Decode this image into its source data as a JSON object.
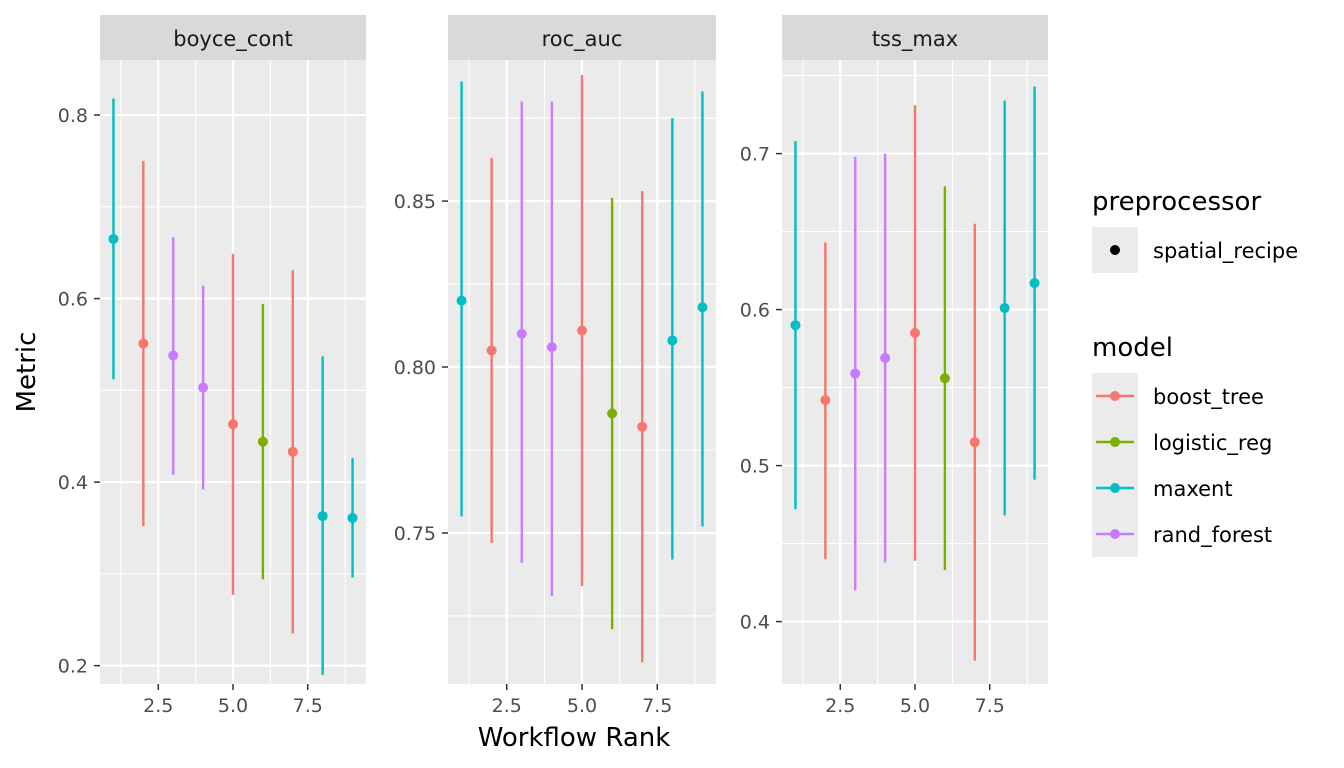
{
  "chart_data": {
    "type": "scatter",
    "xlabel": "Workflow Rank",
    "ylabel": "Metric",
    "x_ticks": [
      2.5,
      5.0,
      7.5
    ],
    "x_tick_labels": [
      "2.5",
      "5.0",
      "7.5"
    ],
    "xlim": [
      0.55,
      9.45
    ],
    "grid": true,
    "facets": [
      {
        "label": "boyce_cont",
        "ylim": [
          0.18,
          0.86
        ],
        "y_ticks": [
          0.2,
          0.4,
          0.6,
          0.8
        ],
        "y_tick_labels": [
          "0.2",
          "0.4",
          "0.6",
          "0.8"
        ],
        "points": [
          {
            "rank": 1,
            "model": "maxent",
            "mean": 0.665,
            "lower": 0.512,
            "upper": 0.818
          },
          {
            "rank": 2,
            "model": "boost_tree",
            "mean": 0.551,
            "lower": 0.352,
            "upper": 0.75
          },
          {
            "rank": 3,
            "model": "rand_forest",
            "mean": 0.538,
            "lower": 0.408,
            "upper": 0.667
          },
          {
            "rank": 4,
            "model": "rand_forest",
            "mean": 0.503,
            "lower": 0.392,
            "upper": 0.614
          },
          {
            "rank": 5,
            "model": "boost_tree",
            "mean": 0.463,
            "lower": 0.277,
            "upper": 0.649
          },
          {
            "rank": 6,
            "model": "logistic_reg",
            "mean": 0.444,
            "lower": 0.294,
            "upper": 0.594
          },
          {
            "rank": 7,
            "model": "boost_tree",
            "mean": 0.433,
            "lower": 0.235,
            "upper": 0.631
          },
          {
            "rank": 8,
            "model": "maxent",
            "mean": 0.363,
            "lower": 0.19,
            "upper": 0.537
          },
          {
            "rank": 9,
            "model": "maxent",
            "mean": 0.361,
            "lower": 0.296,
            "upper": 0.426
          }
        ]
      },
      {
        "label": "roc_auc",
        "ylim": [
          0.7045,
          0.8925
        ],
        "y_ticks": [
          0.75,
          0.8,
          0.85
        ],
        "y_tick_labels": [
          "0.75",
          "0.80",
          "0.85"
        ],
        "points": [
          {
            "rank": 1,
            "model": "maxent",
            "mean": 0.82,
            "lower": 0.755,
            "upper": 0.886
          },
          {
            "rank": 2,
            "model": "boost_tree",
            "mean": 0.805,
            "lower": 0.747,
            "upper": 0.863
          },
          {
            "rank": 3,
            "model": "rand_forest",
            "mean": 0.81,
            "lower": 0.741,
            "upper": 0.88
          },
          {
            "rank": 4,
            "model": "rand_forest",
            "mean": 0.806,
            "lower": 0.731,
            "upper": 0.88
          },
          {
            "rank": 5,
            "model": "boost_tree",
            "mean": 0.811,
            "lower": 0.734,
            "upper": 0.888
          },
          {
            "rank": 6,
            "model": "logistic_reg",
            "mean": 0.786,
            "lower": 0.721,
            "upper": 0.851
          },
          {
            "rank": 7,
            "model": "boost_tree",
            "mean": 0.782,
            "lower": 0.711,
            "upper": 0.853
          },
          {
            "rank": 8,
            "model": "maxent",
            "mean": 0.808,
            "lower": 0.742,
            "upper": 0.875
          },
          {
            "rank": 9,
            "model": "maxent",
            "mean": 0.818,
            "lower": 0.752,
            "upper": 0.883
          }
        ]
      },
      {
        "label": "tss_max",
        "ylim": [
          0.36,
          0.76
        ],
        "y_ticks": [
          0.4,
          0.5,
          0.6,
          0.7
        ],
        "y_tick_labels": [
          "0.4",
          "0.5",
          "0.6",
          "0.7"
        ],
        "points": [
          {
            "rank": 1,
            "model": "maxent",
            "mean": 0.59,
            "lower": 0.472,
            "upper": 0.708
          },
          {
            "rank": 2,
            "model": "boost_tree",
            "mean": 0.542,
            "lower": 0.44,
            "upper": 0.643
          },
          {
            "rank": 3,
            "model": "rand_forest",
            "mean": 0.559,
            "lower": 0.42,
            "upper": 0.698
          },
          {
            "rank": 4,
            "model": "rand_forest",
            "mean": 0.569,
            "lower": 0.438,
            "upper": 0.7
          },
          {
            "rank": 5,
            "model": "boost_tree",
            "mean": 0.585,
            "lower": 0.439,
            "upper": 0.731
          },
          {
            "rank": 6,
            "model": "logistic_reg",
            "mean": 0.556,
            "lower": 0.433,
            "upper": 0.679
          },
          {
            "rank": 7,
            "model": "boost_tree",
            "mean": 0.515,
            "lower": 0.375,
            "upper": 0.655
          },
          {
            "rank": 8,
            "model": "maxent",
            "mean": 0.601,
            "lower": 0.468,
            "upper": 0.734
          },
          {
            "rank": 9,
            "model": "maxent",
            "mean": 0.617,
            "lower": 0.491,
            "upper": 0.743
          }
        ]
      }
    ],
    "legend": {
      "placement": "right",
      "preprocessor": {
        "title": "preprocessor",
        "entries": [
          {
            "label": "spatial_recipe",
            "color": "#000000"
          }
        ]
      },
      "model": {
        "title": "model",
        "entries": [
          {
            "label": "boost_tree",
            "color": "#F8766D"
          },
          {
            "label": "logistic_reg",
            "color": "#7CAE00"
          },
          {
            "label": "maxent",
            "color": "#00BFC4"
          },
          {
            "label": "rand_forest",
            "color": "#C77CFF"
          }
        ]
      }
    },
    "colors": {
      "panel_background": "#EBEBEB",
      "strip_background": "#D9D9D9",
      "grid_line": "#FFFFFF",
      "legend_key_background": "#EBEBEB"
    }
  }
}
